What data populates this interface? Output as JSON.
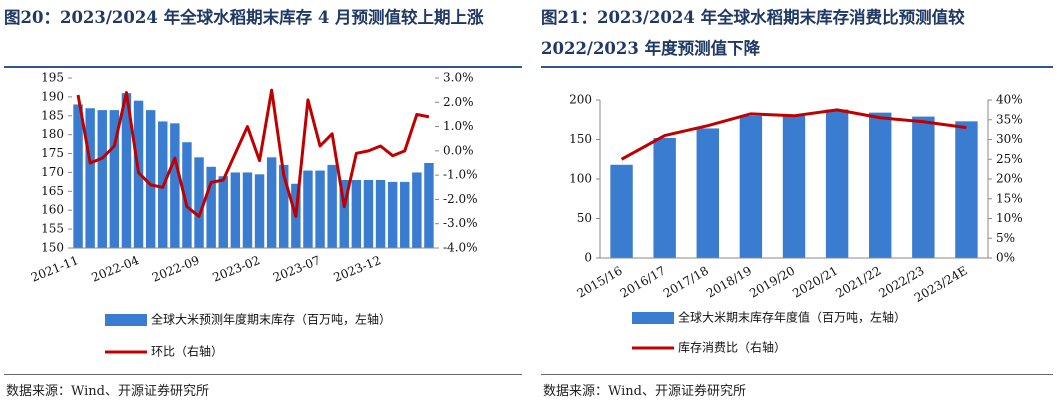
{
  "chart_data": [
    {
      "type": "combo",
      "title": "图20：2023/2024 年全球水稻期末库存 4 月预测值较上期上涨",
      "categories": [
        "2021-11",
        null,
        null,
        null,
        null,
        "2022-04",
        null,
        null,
        null,
        null,
        "2022-09",
        null,
        null,
        null,
        null,
        "2023-02",
        null,
        null,
        null,
        null,
        "2023-07",
        null,
        null,
        null,
        null,
        "2023-12",
        null,
        null,
        null,
        null
      ],
      "series": [
        {
          "name": "全球大米预测年度期末库存（百万吨，左轴）",
          "color": "#3a7dd0",
          "kind": "bar",
          "values": [
            188,
            187,
            186.5,
            186.5,
            191,
            189,
            186.5,
            183.5,
            183,
            178,
            174,
            171.5,
            169,
            170,
            170,
            169.5,
            174,
            172,
            167,
            170.5,
            170.5,
            172,
            168,
            168,
            168,
            168,
            167.5,
            167.5,
            170,
            172.5
          ]
        },
        {
          "name": "环比（右轴）",
          "color": "#c00000",
          "kind": "line",
          "axis": "y2",
          "values": [
            2.3,
            -0.5,
            -0.3,
            0.2,
            2.4,
            -0.9,
            -1.4,
            -1.5,
            -0.3,
            -2.3,
            -2.7,
            -1.3,
            -1.2,
            -0.1,
            1.0,
            -0.4,
            2.5,
            -1.0,
            -2.7,
            2.1,
            0.2,
            0.7,
            -2.3,
            -0.1,
            0.0,
            0.2,
            -0.2,
            0.0,
            1.5,
            1.4
          ]
        }
      ],
      "ylim": [
        150,
        195
      ],
      "yticks": [
        150,
        155,
        160,
        165,
        170,
        175,
        180,
        185,
        190,
        195
      ],
      "y2lim": [
        -4,
        3
      ],
      "y2ticks": [
        {
          "value": -4,
          "label": "-4.0%"
        },
        {
          "value": -3,
          "label": "-3.0%"
        },
        {
          "value": -2,
          "label": "-2.0%"
        },
        {
          "value": -1,
          "label": "-1.0%"
        },
        {
          "value": 0,
          "label": "0.0%"
        },
        {
          "value": 1,
          "label": "1.0%"
        },
        {
          "value": 2,
          "label": "2.0%"
        },
        {
          "value": 3,
          "label": "3.0%"
        }
      ],
      "source": "数据来源：Wind、开源证券研究所"
    },
    {
      "type": "combo",
      "title": "图21：2023/2024  年全球水稻期末库存消费比预测值较2022/2023 年度预测值下降",
      "categories": [
        "2015/16",
        "2016/17",
        "2017/18",
        "2018/19",
        "2019/20",
        "2020/21",
        "2021/22",
        "2022/23",
        "2023/24E"
      ],
      "series": [
        {
          "name": "全球大米期末库存年度值（百万吨，左轴）",
          "color": "#3a7dd0",
          "kind": "bar",
          "values": [
            118,
            152,
            164,
            180,
            180,
            188,
            184,
            179,
            173
          ]
        },
        {
          "name": "库存消费比（右轴）",
          "color": "#c00000",
          "kind": "line",
          "axis": "y2",
          "values": [
            25,
            31,
            33.5,
            36.5,
            36,
            37.5,
            35.5,
            34.5,
            33
          ]
        }
      ],
      "ylim": [
        0,
        200
      ],
      "yticks": [
        0,
        50,
        100,
        150,
        200
      ],
      "y2lim": [
        0,
        40
      ],
      "y2ticks": [
        {
          "value": 0,
          "label": "0%"
        },
        {
          "value": 5,
          "label": "5%"
        },
        {
          "value": 10,
          "label": "10%"
        },
        {
          "value": 15,
          "label": "15%"
        },
        {
          "value": 20,
          "label": "20%"
        },
        {
          "value": 25,
          "label": "25%"
        },
        {
          "value": 30,
          "label": "30%"
        },
        {
          "value": 35,
          "label": "35%"
        },
        {
          "value": 40,
          "label": "40%"
        }
      ],
      "source": "数据来源：Wind、开源证券研究所"
    }
  ]
}
